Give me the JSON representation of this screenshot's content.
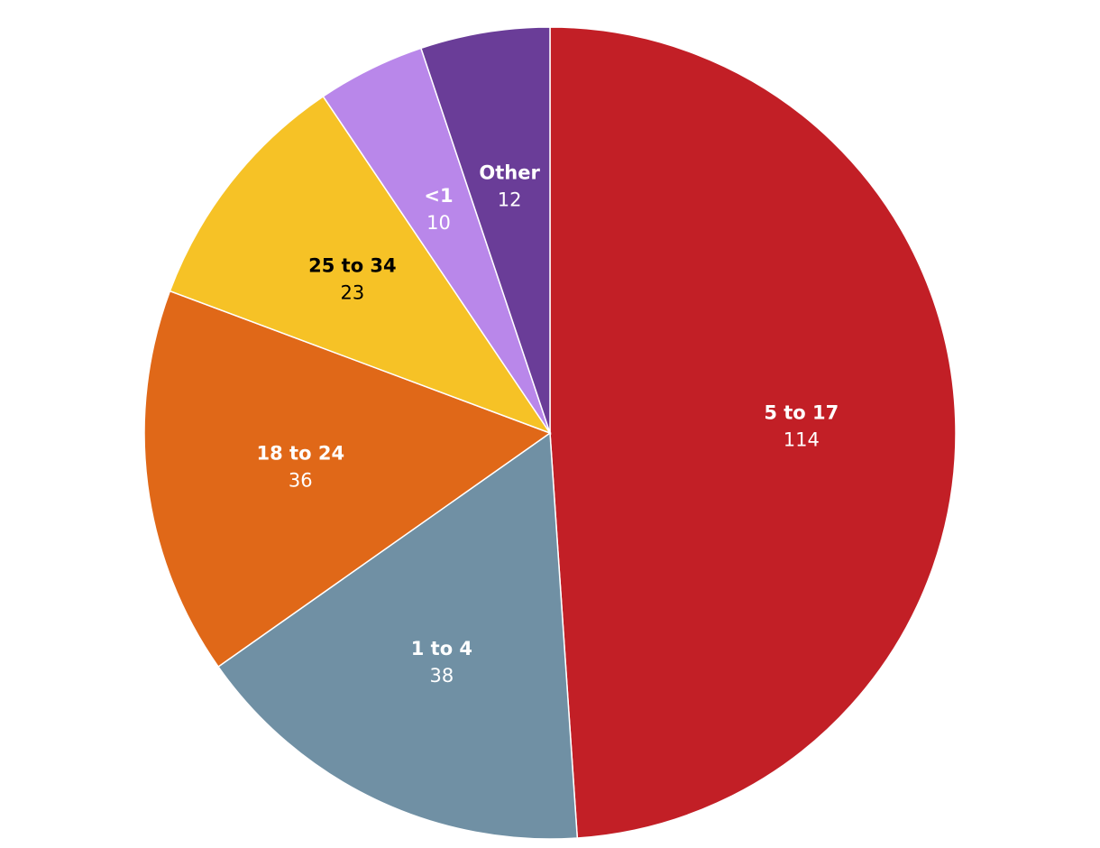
{
  "chart_data": {
    "type": "pie",
    "slices": [
      {
        "label": "5 to 17",
        "value": 114,
        "color": "#C21F26",
        "text_color": "#FFFFFF"
      },
      {
        "label": "1 to 4",
        "value": 38,
        "color": "#7090A4",
        "text_color": "#FFFFFF"
      },
      {
        "label": "18 to 24",
        "value": 36,
        "color": "#E06818",
        "text_color": "#FFFFFF"
      },
      {
        "label": "25 to 34",
        "value": 23,
        "color": "#F6C226",
        "text_color": "#000000"
      },
      {
        "label": "<1",
        "value": 10,
        "color": "#B987EA",
        "text_color": "#FFFFFF"
      },
      {
        "label": "Other",
        "value": 12,
        "color": "#6A3D98",
        "text_color": "#FFFFFF"
      }
    ],
    "start_angle": "top",
    "direction": "clockwise",
    "legend": "none"
  }
}
